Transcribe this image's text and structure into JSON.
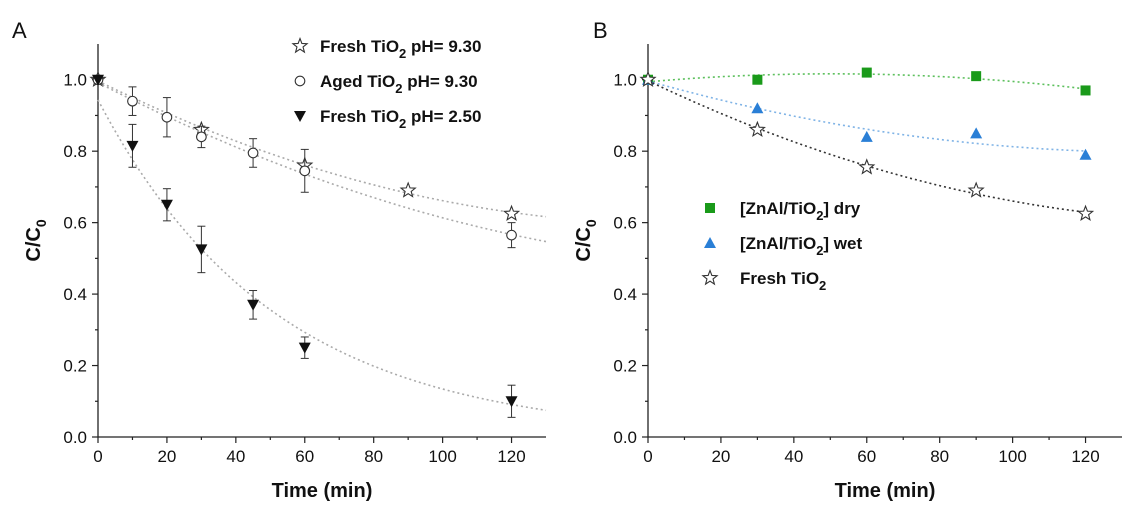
{
  "panels": [
    {
      "letter": "A",
      "chart_data": {
        "type": "scatter",
        "xlabel": "Time (min)",
        "ylabel": "C/C",
        "ylabel_sub": "0",
        "xlim": [
          0,
          130
        ],
        "ylim": [
          0,
          1.1
        ],
        "x_ticks": [
          0,
          20,
          40,
          60,
          80,
          100,
          120
        ],
        "y_ticks": [
          0.0,
          0.2,
          0.4,
          0.6,
          0.8,
          1.0
        ],
        "grid": false,
        "legend_position": "top-right",
        "series": [
          {
            "name": "Fresh TiO",
            "name_sub": "2",
            "name_suffix": " pH= 9.30",
            "marker": "star-open",
            "color": "#333333",
            "fit_color": "#aaaaaa",
            "x": [
              0,
              30,
              60,
              90,
              120
            ],
            "y": [
              1.0,
              0.86,
              0.76,
              0.69,
              0.625
            ]
          },
          {
            "name": "Aged TiO",
            "name_sub": "2",
            "name_suffix": " pH= 9.30",
            "marker": "circle-open",
            "color": "#333333",
            "fit_color": "#aaaaaa",
            "x": [
              0,
              10,
              20,
              30,
              45,
              60,
              120
            ],
            "y": [
              1.0,
              0.94,
              0.895,
              0.84,
              0.795,
              0.745,
              0.565
            ],
            "err": [
              0,
              0.04,
              0.055,
              0.03,
              0.04,
              0.06,
              0.035
            ]
          },
          {
            "name": "Fresh TiO",
            "name_sub": "2",
            "name_suffix": " pH= 2.50",
            "marker": "triangle-down-filled",
            "color": "#111111",
            "fit_color": "#aaaaaa",
            "x": [
              0,
              10,
              20,
              30,
              45,
              60,
              120
            ],
            "y": [
              1.0,
              0.815,
              0.65,
              0.525,
              0.37,
              0.25,
              0.1
            ],
            "err": [
              0,
              0.06,
              0.045,
              0.065,
              0.04,
              0.03,
              0.045
            ]
          }
        ]
      }
    },
    {
      "letter": "B",
      "chart_data": {
        "type": "scatter",
        "xlabel": "Time (min)",
        "ylabel": "C/C",
        "ylabel_sub": "0",
        "xlim": [
          0,
          130
        ],
        "ylim": [
          0,
          1.1
        ],
        "x_ticks": [
          0,
          20,
          40,
          60,
          80,
          100,
          120
        ],
        "y_ticks": [
          0.0,
          0.2,
          0.4,
          0.6,
          0.8,
          1.0
        ],
        "grid": false,
        "legend_position": "center-left",
        "series": [
          {
            "name": "[ZnAl/TiO",
            "name_sub": "2",
            "name_suffix": "] dry",
            "marker": "square-filled",
            "color": "#1a9a1a",
            "fit_color": "#5dc05d",
            "x": [
              0,
              30,
              60,
              90,
              120
            ],
            "y": [
              1.0,
              1.0,
              1.02,
              1.01,
              0.97
            ]
          },
          {
            "name": "[ZnAl/TiO",
            "name_sub": "2",
            "name_suffix": "] wet",
            "marker": "triangle-up-filled",
            "color": "#2a7fd6",
            "fit_color": "#7fb3e6",
            "x": [
              0,
              30,
              60,
              90,
              120
            ],
            "y": [
              1.0,
              0.92,
              0.84,
              0.85,
              0.79
            ]
          },
          {
            "name": "Fresh TiO",
            "name_sub": "2",
            "name_suffix": "",
            "marker": "star-open",
            "color": "#333333",
            "fit_color": "#333333",
            "x": [
              0,
              30,
              60,
              90,
              120
            ],
            "y": [
              1.0,
              0.86,
              0.755,
              0.69,
              0.625
            ]
          }
        ]
      }
    }
  ]
}
